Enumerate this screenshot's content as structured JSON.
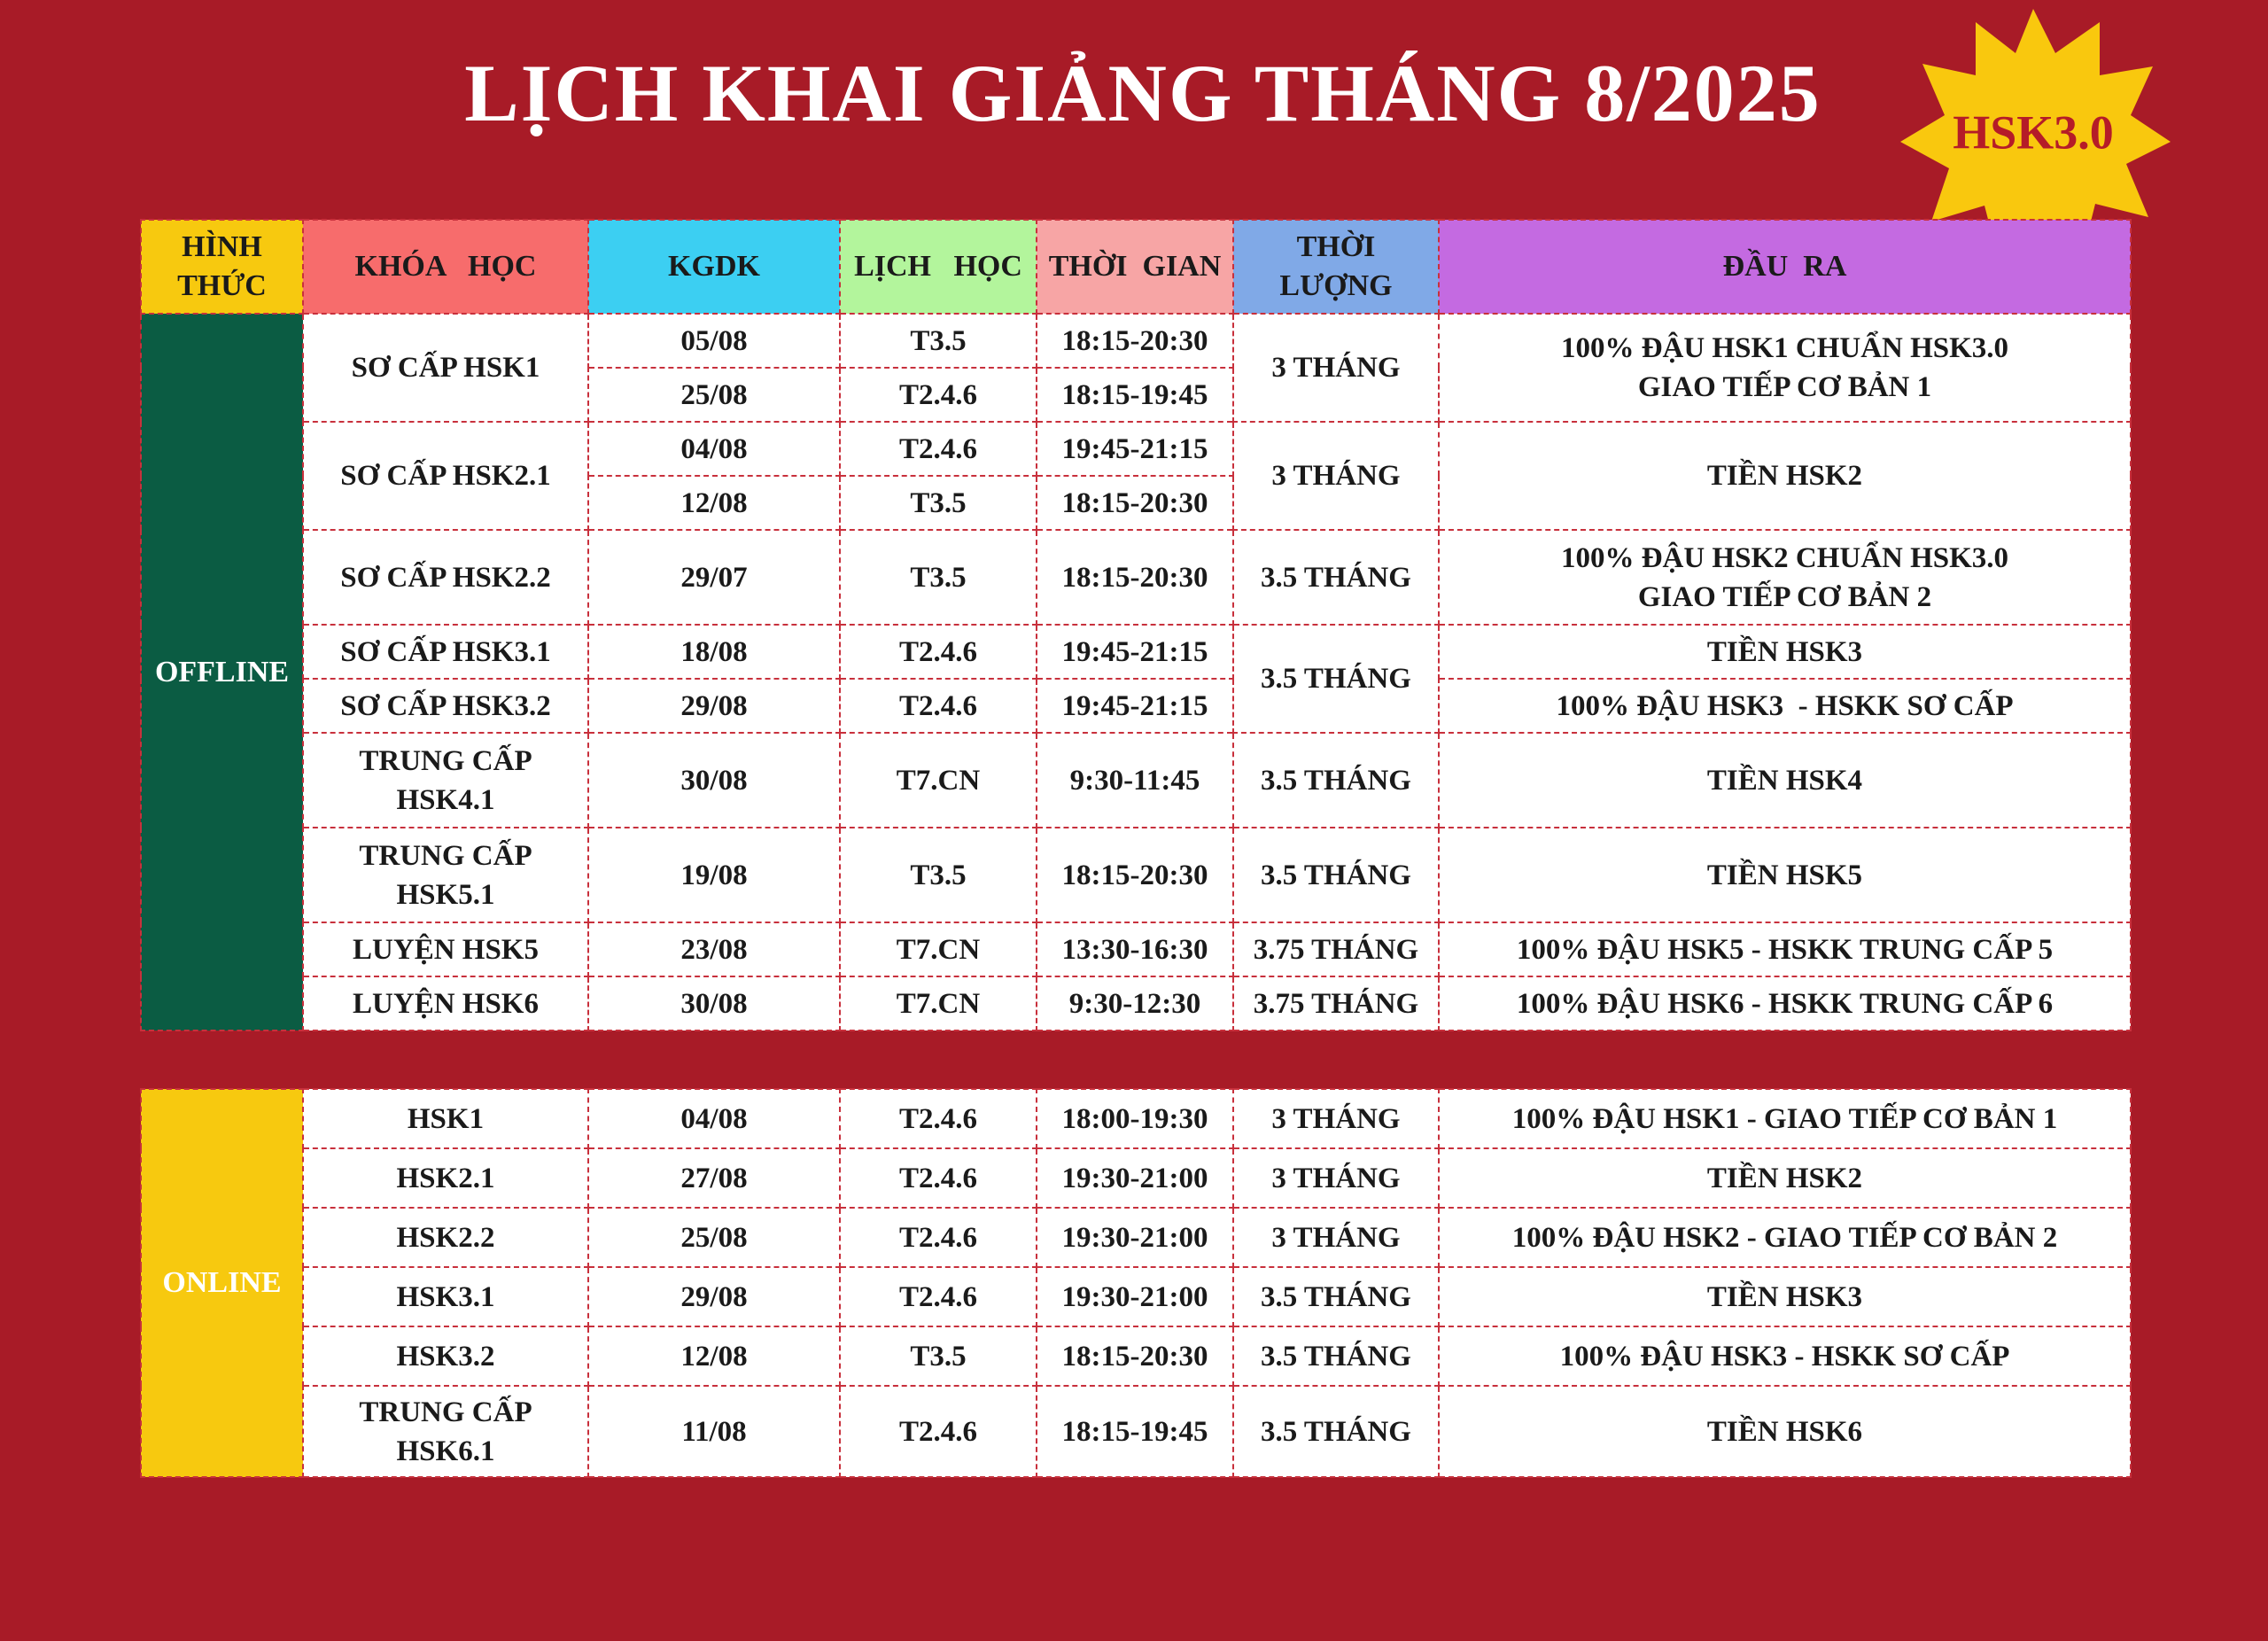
{
  "header": {
    "title": "LỊCH KHAI GIẢNG THÁNG 8/2025",
    "badge": "HSK3.0"
  },
  "table": {
    "columns": [
      [
        "HÌNH",
        "THỨC"
      ],
      [
        "KHÓA   HỌC"
      ],
      [
        "KGDK"
      ],
      [
        "LỊCH   HỌC"
      ],
      [
        "THỜI  GIAN"
      ],
      [
        "THỜI",
        "LƯỢNG"
      ],
      [
        "ĐẦU  RA"
      ]
    ],
    "offline": {
      "label": "OFFLINE",
      "blocks": [
        {
          "duration": "3 THÁNG",
          "courses": [
            {
              "name": [
                "SƠ CẤP HSK1"
              ],
              "output": [
                "100% ĐẬU HSK1 CHUẨN HSK3.0",
                "GIAO TIẾP CƠ BẢN 1"
              ],
              "sessions": [
                {
                  "start": "05/08",
                  "days": "T3.5",
                  "time": "18:15-20:30"
                },
                {
                  "start": "25/08",
                  "days": "T2.4.6",
                  "time": "18:15-19:45"
                }
              ]
            }
          ]
        },
        {
          "duration": "3 THÁNG",
          "courses": [
            {
              "name": [
                "SƠ CẤP HSK2.1"
              ],
              "output": [
                "TIỀN HSK2"
              ],
              "sessions": [
                {
                  "start": "04/08",
                  "days": "T2.4.6",
                  "time": "19:45-21:15"
                },
                {
                  "start": "12/08",
                  "days": "T3.5",
                  "time": "18:15-20:30"
                }
              ]
            }
          ]
        },
        {
          "duration": "3.5 THÁNG",
          "courses": [
            {
              "name": [
                "SƠ CẤP HSK2.2"
              ],
              "output": [
                "100% ĐẬU HSK2 CHUẨN HSK3.0",
                "GIAO TIẾP CƠ BẢN 2"
              ],
              "sessions": [
                {
                  "start": "29/07",
                  "days": "T3.5",
                  "time": "18:15-20:30"
                }
              ]
            }
          ]
        },
        {
          "duration": "3.5 THÁNG",
          "courses": [
            {
              "name": [
                "SƠ CẤP HSK3.1"
              ],
              "output": [
                "TIỀN HSK3"
              ],
              "sessions": [
                {
                  "start": "18/08",
                  "days": "T2.4.6",
                  "time": "19:45-21:15"
                }
              ]
            },
            {
              "name": [
                "SƠ CẤP HSK3.2"
              ],
              "output": [
                "100% ĐẬU HSK3  - HSKK SƠ CẤP"
              ],
              "sessions": [
                {
                  "start": "29/08",
                  "days": "T2.4.6",
                  "time": "19:45-21:15"
                }
              ]
            }
          ]
        },
        {
          "duration": "3.5 THÁNG",
          "courses": [
            {
              "name": [
                "TRUNG CẤP",
                "HSK4.1"
              ],
              "output": [
                "TIỀN HSK4"
              ],
              "sessions": [
                {
                  "start": "30/08",
                  "days": "T7.CN",
                  "time": "9:30-11:45"
                }
              ]
            }
          ]
        },
        {
          "duration": "3.5 THÁNG",
          "courses": [
            {
              "name": [
                "TRUNG CẤP",
                "HSK5.1"
              ],
              "output": [
                "TIỀN HSK5"
              ],
              "sessions": [
                {
                  "start": "19/08",
                  "days": "T3.5",
                  "time": "18:15-20:30"
                }
              ]
            }
          ]
        },
        {
          "duration": "3.75 THÁNG",
          "courses": [
            {
              "name": [
                "LUYỆN HSK5"
              ],
              "output": [
                "100% ĐẬU HSK5 - HSKK TRUNG CẤP 5"
              ],
              "sessions": [
                {
                  "start": "23/08",
                  "days": "T7.CN",
                  "time": "13:30-16:30"
                }
              ]
            }
          ]
        },
        {
          "duration": "3.75 THÁNG",
          "courses": [
            {
              "name": [
                "LUYỆN HSK6"
              ],
              "output": [
                "100% ĐẬU HSK6 - HSKK TRUNG CẤP 6"
              ],
              "sessions": [
                {
                  "start": "30/08",
                  "days": "T7.CN",
                  "time": "9:30-12:30"
                }
              ]
            }
          ]
        }
      ]
    },
    "online": {
      "label": "ONLINE",
      "rows": [
        {
          "course": [
            "HSK1"
          ],
          "start": "04/08",
          "days": "T2.4.6",
          "time": "18:00-19:30",
          "duration": "3 THÁNG",
          "output": "100% ĐẬU HSK1 - GIAO TIẾP CƠ BẢN 1"
        },
        {
          "course": [
            "HSK2.1"
          ],
          "start": "27/08",
          "days": "T2.4.6",
          "time": "19:30-21:00",
          "duration": "3 THÁNG",
          "output": "TIỀN HSK2"
        },
        {
          "course": [
            "HSK2.2"
          ],
          "start": "25/08",
          "days": "T2.4.6",
          "time": "19:30-21:00",
          "duration": "3 THÁNG",
          "output": "100% ĐẬU HSK2 - GIAO TIẾP CƠ BẢN 2"
        },
        {
          "course": [
            "HSK3.1"
          ],
          "start": "29/08",
          "days": "T2.4.6",
          "time": "19:30-21:00",
          "duration": "3.5 THÁNG",
          "output": "TIỀN HSK3"
        },
        {
          "course": [
            "HSK3.2"
          ],
          "start": "12/08",
          "days": "T3.5",
          "time": "18:15-20:30",
          "duration": "3.5 THÁNG",
          "output": "100% ĐẬU HSK3 - HSKK SƠ CẤP"
        },
        {
          "course": [
            "TRUNG CẤP",
            "HSK6.1"
          ],
          "start": "11/08",
          "days": "T2.4.6",
          "time": "18:15-19:45",
          "duration": "3.5 THÁNG",
          "output": "TIỀN HSK6"
        }
      ]
    }
  }
}
